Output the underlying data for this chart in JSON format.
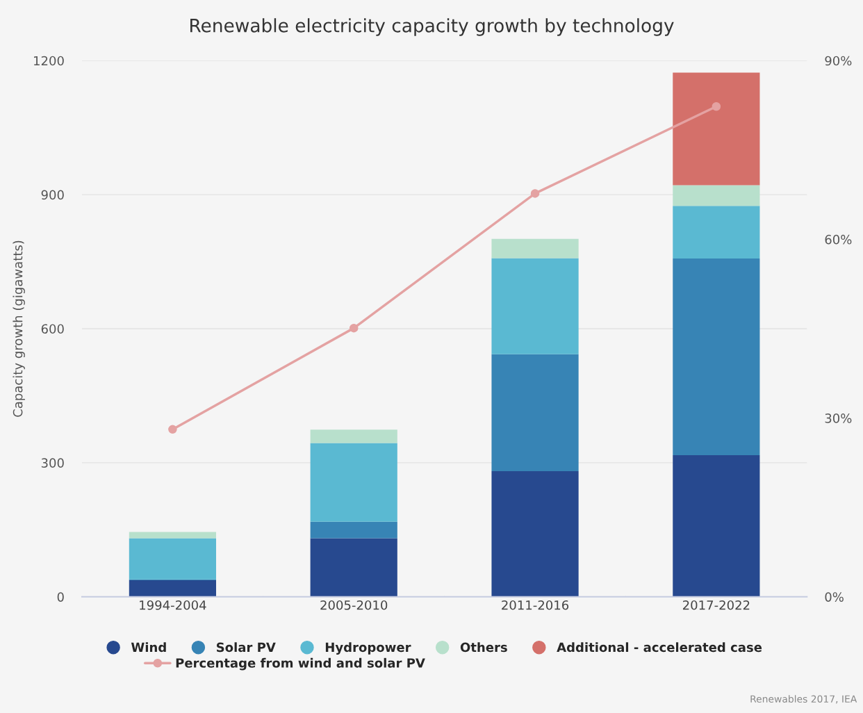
{
  "chart_data": {
    "type": "bar",
    "stacked": true,
    "title": "Renewable electricity capacity growth by technology",
    "ylabel": "Capacity growth (gigawatts)",
    "categories": [
      "1994-2004",
      "2005-2010",
      "2011-2016",
      "2017-2022"
    ],
    "series": [
      {
        "name": "Wind",
        "color": "#27498f",
        "values": [
          37,
          131,
          281,
          317
        ]
      },
      {
        "name": "Solar PV",
        "color": "#3784b5",
        "values": [
          2,
          37,
          262,
          440
        ]
      },
      {
        "name": "Hydropower",
        "color": "#5ab9d2",
        "values": [
          92,
          176,
          215,
          118
        ]
      },
      {
        "name": "Others",
        "color": "#b8e0cc",
        "values": [
          14,
          30,
          43,
          46
        ]
      },
      {
        "name": "Additional - accelerated case",
        "color": "#d4706a",
        "values": [
          null,
          null,
          null,
          252
        ]
      },
      {
        "name": "Percentage from wind and solar PV",
        "type": "line",
        "axis": "y2",
        "color": "#e4a2a2",
        "marker": "circle",
        "values": [
          28.1,
          45.1,
          67.7,
          82.3
        ]
      }
    ],
    "ylim": [
      0,
      1200
    ],
    "yticks": [
      0,
      300,
      600,
      900,
      1200
    ],
    "y2lim": [
      0,
      90
    ],
    "y2ticks": [
      {
        "value": 0,
        "label": "0%"
      },
      {
        "value": 30,
        "label": "30%"
      },
      {
        "value": 60,
        "label": "60%"
      },
      {
        "value": 90,
        "label": "90%"
      }
    ],
    "grid": "y",
    "legend": "bottom",
    "annotations": [
      "Renewables 2017, IEA"
    ]
  }
}
